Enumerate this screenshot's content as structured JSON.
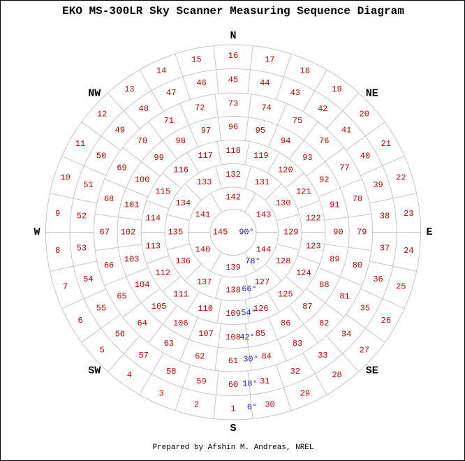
{
  "title": "EKO MS-300LR Sky Scanner Measuring Sequence Diagram",
  "footer": "Prepared by Afshín M. Andreas, NREL",
  "colors": {
    "patch_number": "#cc0000",
    "elevation_label": "#2222cc",
    "grid": "#c6c6c6",
    "text": "#000000",
    "background": "#ffffff"
  },
  "compass": [
    {
      "label": "N",
      "azimuth_cw_from_south": 180
    },
    {
      "label": "NE",
      "azimuth_cw_from_south": 225
    },
    {
      "label": "E",
      "azimuth_cw_from_south": 270
    },
    {
      "label": "SE",
      "azimuth_cw_from_south": 315
    },
    {
      "label": "S",
      "azimuth_cw_from_south": 0
    },
    {
      "label": "SW",
      "azimuth_cw_from_south": 45
    },
    {
      "label": "W",
      "azimuth_cw_from_south": 90
    },
    {
      "label": "NW",
      "azimuth_cw_from_south": 135
    }
  ],
  "elevation_scale": [
    "90°",
    "78°",
    "66°",
    "54°",
    "42°",
    "30°",
    "18°",
    "6°"
  ],
  "center_patch": {
    "number": "145",
    "elevation_label": "90°"
  },
  "rings": [
    {
      "elevation_label": "6°",
      "patch_count": 30,
      "numbers_clockwise_from_south": [
        1,
        2,
        3,
        4,
        5,
        6,
        7,
        8,
        9,
        10,
        11,
        12,
        13,
        14,
        15,
        16,
        17,
        18,
        19,
        20,
        21,
        22,
        23,
        24,
        25,
        26,
        27,
        28,
        29,
        30
      ]
    },
    {
      "elevation_label": "18°",
      "patch_count": 30,
      "numbers_clockwise_from_south": [
        60,
        59,
        58,
        57,
        56,
        55,
        54,
        53,
        52,
        51,
        50,
        49,
        48,
        47,
        46,
        45,
        44,
        43,
        42,
        41,
        40,
        39,
        38,
        37,
        36,
        35,
        34,
        33,
        32,
        31
      ]
    },
    {
      "elevation_label": "30°",
      "patch_count": 24,
      "numbers_clockwise_from_south": [
        61,
        62,
        63,
        64,
        65,
        66,
        67,
        68,
        69,
        70,
        71,
        72,
        73,
        74,
        75,
        76,
        77,
        78,
        79,
        80,
        81,
        82,
        83,
        84
      ]
    },
    {
      "elevation_label": "42°",
      "patch_count": 24,
      "numbers_clockwise_from_south": [
        108,
        107,
        106,
        105,
        104,
        103,
        102,
        101,
        100,
        99,
        98,
        97,
        96,
        95,
        94,
        93,
        92,
        91,
        90,
        89,
        88,
        87,
        86,
        85
      ]
    },
    {
      "elevation_label": "54°",
      "patch_count": 18,
      "numbers_clockwise_from_south": [
        109,
        110,
        111,
        112,
        113,
        114,
        115,
        116,
        117,
        118,
        119,
        120,
        121,
        122,
        123,
        124,
        125,
        126
      ]
    },
    {
      "elevation_label": "66°",
      "patch_count": 12,
      "numbers_clockwise_from_south": [
        138,
        137,
        136,
        135,
        134,
        133,
        132,
        131,
        130,
        129,
        128,
        127
      ]
    },
    {
      "elevation_label": "78°",
      "patch_count": 6,
      "numbers_clockwise_from_south": [
        139,
        140,
        141,
        142,
        143,
        144
      ]
    }
  ]
}
